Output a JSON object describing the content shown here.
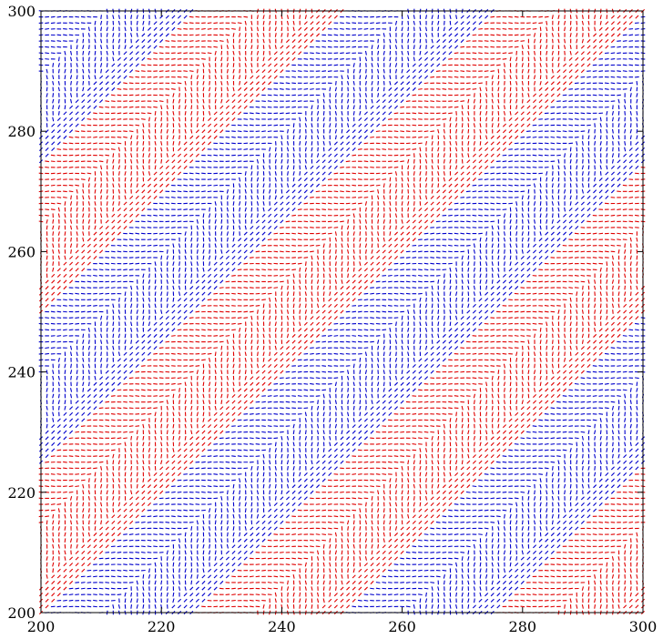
{
  "chart_data": {
    "type": "quiver",
    "title": "",
    "xlabel": "",
    "ylabel": "",
    "xlim": [
      200,
      300
    ],
    "ylim": [
      200,
      300
    ],
    "x_ticks": [
      200,
      220,
      240,
      260,
      280,
      300
    ],
    "y_ticks": [
      200,
      220,
      240,
      260,
      280,
      300
    ],
    "x_tick_labels": [
      "200",
      "220",
      "240",
      "260",
      "280",
      "300"
    ],
    "y_tick_labels": [
      "200",
      "220",
      "240",
      "260",
      "280",
      "300"
    ],
    "grid": false,
    "legend": "none",
    "grid_step": 1,
    "series": [
      {
        "color": "#e00000"
      },
      {
        "color": "#0000cc"
      }
    ],
    "band_direction_slope": 1,
    "band_offsets_y_minus_x": [
      -100,
      -75,
      -50,
      -25,
      0,
      25,
      50,
      75,
      100
    ],
    "band_colors": [
      "#e00000",
      "#0000cc",
      "#e00000",
      "#0000cc",
      "#e00000",
      "#0000cc",
      "#e00000",
      "#0000cc"
    ]
  }
}
